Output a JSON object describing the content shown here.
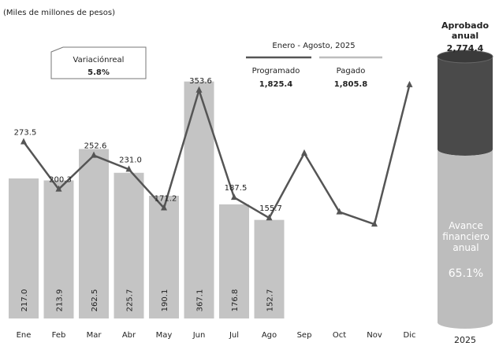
{
  "chart_data": {
    "type": "bar_line",
    "subtitle": "(Miles de millones de pesos)",
    "categories": [
      "Ene",
      "Feb",
      "Mar",
      "Abr",
      "May",
      "Jun",
      "Jul",
      "Ago",
      "Sep",
      "Oct",
      "Nov",
      "Dic"
    ],
    "ylim": [
      0,
      480
    ],
    "annotation": {
      "label": "Variaciónreal",
      "value": {
        "value": 5.8,
        "label": "5.8%"
      }
    },
    "legend_title": "Enero - Agosto, 2025",
    "series": [
      {
        "name": "Pagado",
        "type": "bar",
        "color": "#c4c4c4",
        "legend_color": "#bdbdbd",
        "values": [
          217.0,
          213.9,
          262.5,
          225.7,
          190.1,
          367.1,
          176.8,
          152.7,
          null,
          null,
          null,
          null
        ],
        "value_labels": [
          "217.0",
          "213.9",
          "262.5",
          "225.7",
          "190.1",
          "367.1",
          "176.8",
          "152.7",
          null,
          null,
          null,
          null
        ],
        "total": {
          "value": 1805.8,
          "label": "1,805.8"
        }
      },
      {
        "name": "Programado",
        "type": "line",
        "color": "#555555",
        "values": [
          273.5,
          200.3,
          252.6,
          231.0,
          171.2,
          353.6,
          187.5,
          155.7,
          256,
          165,
          146,
          362
        ],
        "value_labels": [
          "273.5",
          "200.3",
          "252.6",
          "231.0",
          "171.2",
          "353.6",
          "187.5",
          "155.7",
          null,
          null,
          null,
          null
        ],
        "total": {
          "value": 1825.4,
          "label": "1,825.4"
        }
      }
    ],
    "cylinder": {
      "title": "Aprobado anual",
      "value": {
        "value": 2774.4,
        "label": "2,774.4"
      },
      "progress_label": "Avance financiero anual",
      "progress": {
        "value": 65.1,
        "label": "65.1%"
      },
      "year": "2025",
      "colors": [
        "#bdbdbd",
        "#4a4a4a"
      ]
    }
  }
}
